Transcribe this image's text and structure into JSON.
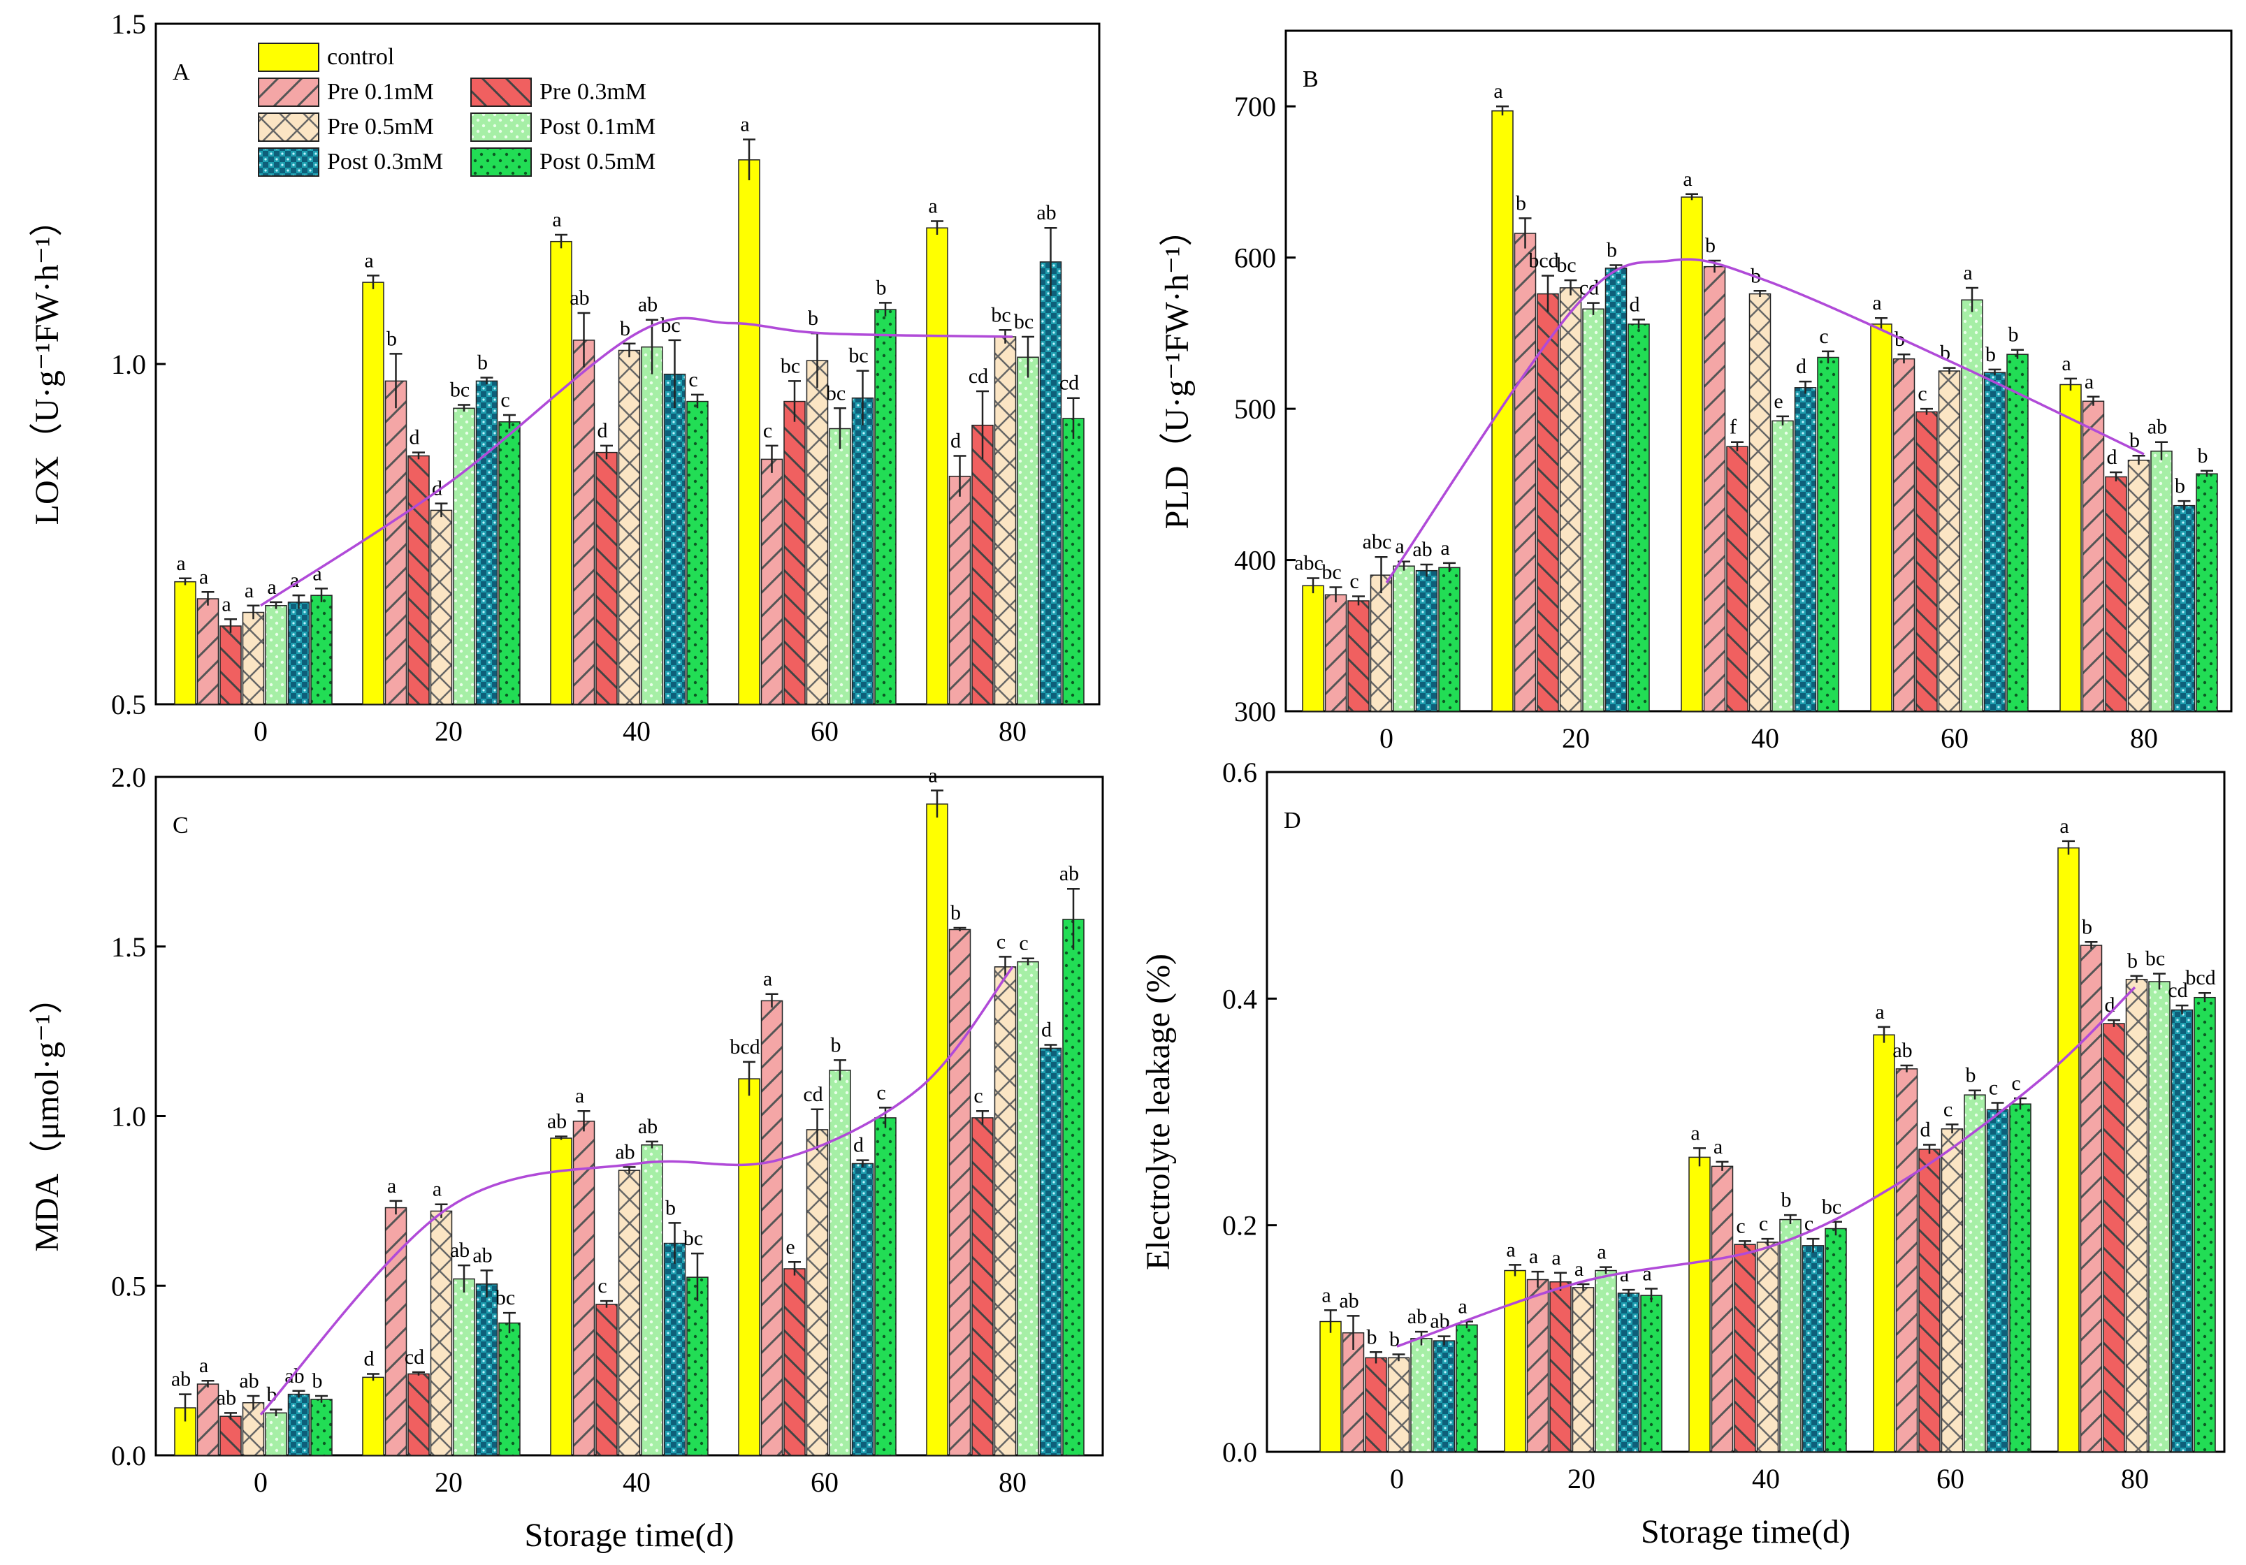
{
  "figure": {
    "legend": [
      "control",
      "Pre 0.1mM",
      "Pre 0.3mM",
      "Pre 0.5mM",
      "Post 0.1mM",
      "Post 0.3mM",
      "Post 0.5mM"
    ],
    "series_style": [
      {
        "color": "#ffff00",
        "pattern": "solid"
      },
      {
        "color": "#f4a6a6",
        "pattern": "diag-right"
      },
      {
        "color": "#f06060",
        "pattern": "diag-left"
      },
      {
        "color": "#fbe5c4",
        "pattern": "cross"
      },
      {
        "color": "#a6efa6",
        "pattern": "dots"
      },
      {
        "color": "#22b3c0",
        "pattern": "checker"
      },
      {
        "color": "#22dd55",
        "pattern": "dots-dark"
      }
    ],
    "trend_color": "#b04ad8"
  },
  "chart_data": [
    {
      "type": "bar",
      "panel": "A",
      "title": "",
      "xlabel": "",
      "ylabel": "LOX（U·g⁻¹FW·h⁻¹）",
      "ylim": [
        0.5,
        1.5
      ],
      "yticks": [
        0.5,
        1.0,
        1.5
      ],
      "ytick_labels": [
        "0.5",
        "1.0",
        "1.5"
      ],
      "categories": [
        "0",
        "20",
        "40",
        "60",
        "80"
      ],
      "series": [
        {
          "name": "control",
          "values": [
            0.68,
            1.12,
            1.18,
            1.3,
            1.2
          ],
          "errors": [
            0.005,
            0.01,
            0.01,
            0.03,
            0.01
          ],
          "labels": [
            "a",
            "a",
            "a",
            "a",
            "a"
          ]
        },
        {
          "name": "Pre 0.1mM",
          "values": [
            0.655,
            0.975,
            1.035,
            0.86,
            0.835
          ],
          "errors": [
            0.01,
            0.04,
            0.04,
            0.02,
            0.03
          ],
          "labels": [
            "a",
            "b",
            "ab",
            "c",
            "d"
          ]
        },
        {
          "name": "Pre 0.3mM",
          "values": [
            0.615,
            0.865,
            0.87,
            0.945,
            0.91
          ],
          "errors": [
            0.01,
            0.005,
            0.01,
            0.03,
            0.05
          ],
          "labels": [
            "a",
            "d",
            "d",
            "bc",
            "cd"
          ]
        },
        {
          "name": "Pre 0.5mM",
          "values": [
            0.635,
            0.785,
            1.02,
            1.005,
            1.04
          ],
          "errors": [
            0.01,
            0.01,
            0.01,
            0.04,
            0.01
          ],
          "labels": [
            "a",
            "d",
            "b",
            "b",
            "bc"
          ]
        },
        {
          "name": "Post 0.1mM",
          "values": [
            0.645,
            0.935,
            1.025,
            0.905,
            1.01
          ],
          "errors": [
            0.005,
            0.005,
            0.04,
            0.03,
            0.03
          ],
          "labels": [
            "a",
            "bc",
            "ab",
            "bc",
            "bc"
          ]
        },
        {
          "name": "Post 0.3mM",
          "values": [
            0.65,
            0.975,
            0.985,
            0.95,
            1.15
          ],
          "errors": [
            0.01,
            0.005,
            0.05,
            0.04,
            0.05
          ],
          "labels": [
            "a",
            "b",
            "bc",
            "bc",
            "ab"
          ]
        },
        {
          "name": "Post 0.5mM",
          "values": [
            0.66,
            0.915,
            0.945,
            1.08,
            0.92
          ],
          "errors": [
            0.01,
            0.01,
            0.01,
            0.01,
            0.03
          ],
          "labels": [
            "a",
            "c",
            "c",
            "b",
            "cd"
          ]
        }
      ],
      "trend": [
        [
          0,
          0.645
        ],
        [
          20,
          0.825
        ],
        [
          40,
          1.045
        ],
        [
          50,
          1.06
        ],
        [
          60,
          1.045
        ],
        [
          80,
          1.04
        ]
      ]
    },
    {
      "type": "bar",
      "panel": "B",
      "title": "",
      "xlabel": "",
      "ylabel": "PLD（U·g⁻¹FW·h⁻¹）",
      "ylim": [
        300,
        750
      ],
      "yticks": [
        300,
        400,
        500,
        600,
        700
      ],
      "ytick_labels": [
        "300",
        "400",
        "500",
        "600",
        "700"
      ],
      "categories": [
        "0",
        "20",
        "40",
        "60",
        "80"
      ],
      "series": [
        {
          "name": "control",
          "values": [
            383,
            697,
            640,
            556,
            516
          ],
          "errors": [
            5,
            3,
            2,
            4,
            4
          ],
          "labels": [
            "abc",
            "a",
            "a",
            "a",
            "a"
          ]
        },
        {
          "name": "Pre 0.1mM",
          "values": [
            377,
            616,
            594,
            533,
            505
          ],
          "errors": [
            5,
            10,
            4,
            3,
            3
          ],
          "labels": [
            "bc",
            "b",
            "b",
            "b",
            "a"
          ]
        },
        {
          "name": "Pre 0.3mM",
          "values": [
            373,
            576,
            475,
            498,
            455
          ],
          "errors": [
            3,
            12,
            3,
            2,
            3
          ],
          "labels": [
            "c",
            "bcd",
            "f",
            "c",
            "d"
          ]
        },
        {
          "name": "Pre 0.5mM",
          "values": [
            390,
            580,
            576,
            525,
            466
          ],
          "errors": [
            12,
            5,
            2,
            2,
            3
          ],
          "labels": [
            "abc",
            "bc",
            "b",
            "b",
            "b"
          ]
        },
        {
          "name": "Post 0.1mM",
          "values": [
            396,
            566,
            492,
            572,
            472
          ],
          "errors": [
            3,
            4,
            3,
            8,
            6
          ],
          "labels": [
            "a",
            "cd",
            "e",
            "a",
            "ab"
          ]
        },
        {
          "name": "Post 0.3mM",
          "values": [
            393,
            593,
            514,
            524,
            436
          ],
          "errors": [
            4,
            2,
            4,
            2,
            3
          ],
          "labels": [
            "ab",
            "b",
            "d",
            "b",
            "b"
          ]
        },
        {
          "name": "Post 0.5mM",
          "values": [
            395,
            556,
            534,
            536,
            457
          ],
          "errors": [
            3,
            3,
            4,
            3,
            2
          ],
          "labels": [
            "a",
            "d",
            "c",
            "b",
            "b"
          ]
        }
      ],
      "trend": [
        [
          0,
          385
        ],
        [
          20,
          568
        ],
        [
          30,
          598
        ],
        [
          40,
          585
        ],
        [
          60,
          530
        ],
        [
          80,
          470
        ]
      ]
    },
    {
      "type": "bar",
      "panel": "C",
      "title": "",
      "xlabel": "Storage time(d)",
      "ylabel": "MDA（μmol·g⁻¹）",
      "ylim": [
        0,
        2.0
      ],
      "yticks": [
        0,
        0.5,
        1.0,
        1.5,
        2.0
      ],
      "ytick_labels": [
        "0.0",
        "0.5",
        "1.0",
        "1.5",
        "2.0"
      ],
      "categories": [
        "0",
        "20",
        "40",
        "60",
        "80"
      ],
      "series": [
        {
          "name": "control",
          "values": [
            0.14,
            0.23,
            0.935,
            1.11,
            1.92
          ],
          "errors": [
            0.04,
            0.01,
            0.005,
            0.05,
            0.04
          ],
          "labels": [
            "ab",
            "d",
            "ab",
            "bcd",
            "a"
          ]
        },
        {
          "name": "Pre 0.1mM",
          "values": [
            0.21,
            0.73,
            0.985,
            1.34,
            1.55
          ],
          "errors": [
            0.01,
            0.02,
            0.03,
            0.02,
            0.005
          ],
          "labels": [
            "a",
            "a",
            "a",
            "a",
            "b"
          ]
        },
        {
          "name": "Pre 0.3mM",
          "values": [
            0.115,
            0.24,
            0.445,
            0.55,
            0.995
          ],
          "errors": [
            0.01,
            0.005,
            0.01,
            0.02,
            0.02
          ],
          "labels": [
            "ab",
            "cd",
            "c",
            "e",
            "c"
          ]
        },
        {
          "name": "Pre 0.5mM",
          "values": [
            0.155,
            0.72,
            0.84,
            0.96,
            1.44
          ],
          "errors": [
            0.02,
            0.02,
            0.01,
            0.06,
            0.03
          ],
          "labels": [
            "ab",
            "a",
            "ab",
            "cd",
            "c"
          ]
        },
        {
          "name": "Post 0.1mM",
          "values": [
            0.125,
            0.52,
            0.915,
            1.135,
            1.455
          ],
          "errors": [
            0.01,
            0.04,
            0.01,
            0.03,
            0.01
          ],
          "labels": [
            "b",
            "ab",
            "ab",
            "b",
            "c"
          ]
        },
        {
          "name": "Post 0.3mM",
          "values": [
            0.18,
            0.505,
            0.625,
            0.86,
            1.2
          ],
          "errors": [
            0.01,
            0.04,
            0.06,
            0.01,
            0.01
          ],
          "labels": [
            "ab",
            "ab",
            "b",
            "d",
            "d"
          ]
        },
        {
          "name": "Post 0.5mM",
          "values": [
            0.165,
            0.39,
            0.525,
            0.995,
            1.58
          ],
          "errors": [
            0.01,
            0.03,
            0.07,
            0.03,
            0.09
          ],
          "labels": [
            "b",
            "bc",
            "bc",
            "c",
            "ab"
          ]
        }
      ],
      "trend": [
        [
          0,
          0.12
        ],
        [
          20,
          0.73
        ],
        [
          40,
          0.86
        ],
        [
          55,
          0.87
        ],
        [
          70,
          1.08
        ],
        [
          80,
          1.44
        ]
      ]
    },
    {
      "type": "bar",
      "panel": "D",
      "title": "",
      "xlabel": "Storage time(d)",
      "ylabel": "Electrolyte leakage (%)",
      "ylim": [
        0,
        0.6
      ],
      "yticks": [
        0,
        0.2,
        0.4,
        0.6
      ],
      "ytick_labels": [
        "0.0",
        "0.2",
        "0.4",
        "0.6"
      ],
      "categories": [
        "0",
        "20",
        "40",
        "60",
        "80"
      ],
      "series": [
        {
          "name": "control",
          "values": [
            0.115,
            0.16,
            0.26,
            0.368,
            0.533
          ],
          "errors": [
            0.01,
            0.005,
            0.008,
            0.007,
            0.006
          ],
          "labels": [
            "a",
            "a",
            "a",
            "a",
            "a"
          ]
        },
        {
          "name": "Pre 0.1mM",
          "values": [
            0.105,
            0.152,
            0.252,
            0.338,
            0.447
          ],
          "errors": [
            0.015,
            0.007,
            0.004,
            0.003,
            0.003
          ],
          "labels": [
            "ab",
            "a",
            "a",
            "ab",
            "b"
          ]
        },
        {
          "name": "Pre 0.3mM",
          "values": [
            0.083,
            0.15,
            0.183,
            0.267,
            0.378
          ],
          "errors": [
            0.005,
            0.008,
            0.003,
            0.004,
            0.003
          ],
          "labels": [
            "b",
            "a",
            "c",
            "d",
            "d"
          ]
        },
        {
          "name": "Pre 0.5mM",
          "values": [
            0.083,
            0.145,
            0.185,
            0.285,
            0.417
          ],
          "errors": [
            0.003,
            0.003,
            0.003,
            0.004,
            0.003
          ],
          "labels": [
            "b",
            "a",
            "c",
            "c",
            "b"
          ]
        },
        {
          "name": "Post 0.1mM",
          "values": [
            0.1,
            0.16,
            0.205,
            0.315,
            0.415
          ],
          "errors": [
            0.006,
            0.003,
            0.004,
            0.004,
            0.007
          ],
          "labels": [
            "ab",
            "a",
            "b",
            "b",
            "bc"
          ]
        },
        {
          "name": "Post 0.3mM",
          "values": [
            0.098,
            0.14,
            0.182,
            0.302,
            0.39
          ],
          "errors": [
            0.004,
            0.003,
            0.006,
            0.006,
            0.004
          ],
          "labels": [
            "ab",
            "a",
            "c",
            "c",
            "cd"
          ]
        },
        {
          "name": "Post 0.5mM",
          "values": [
            0.112,
            0.138,
            0.197,
            0.307,
            0.401
          ],
          "errors": [
            0.003,
            0.006,
            0.006,
            0.005,
            0.004
          ],
          "labels": [
            "a",
            "a",
            "bc",
            "c",
            "bcd"
          ]
        }
      ],
      "trend": [
        [
          0,
          0.093
        ],
        [
          20,
          0.15
        ],
        [
          40,
          0.18
        ],
        [
          55,
          0.24
        ],
        [
          70,
          0.33
        ],
        [
          80,
          0.41
        ]
      ]
    }
  ]
}
